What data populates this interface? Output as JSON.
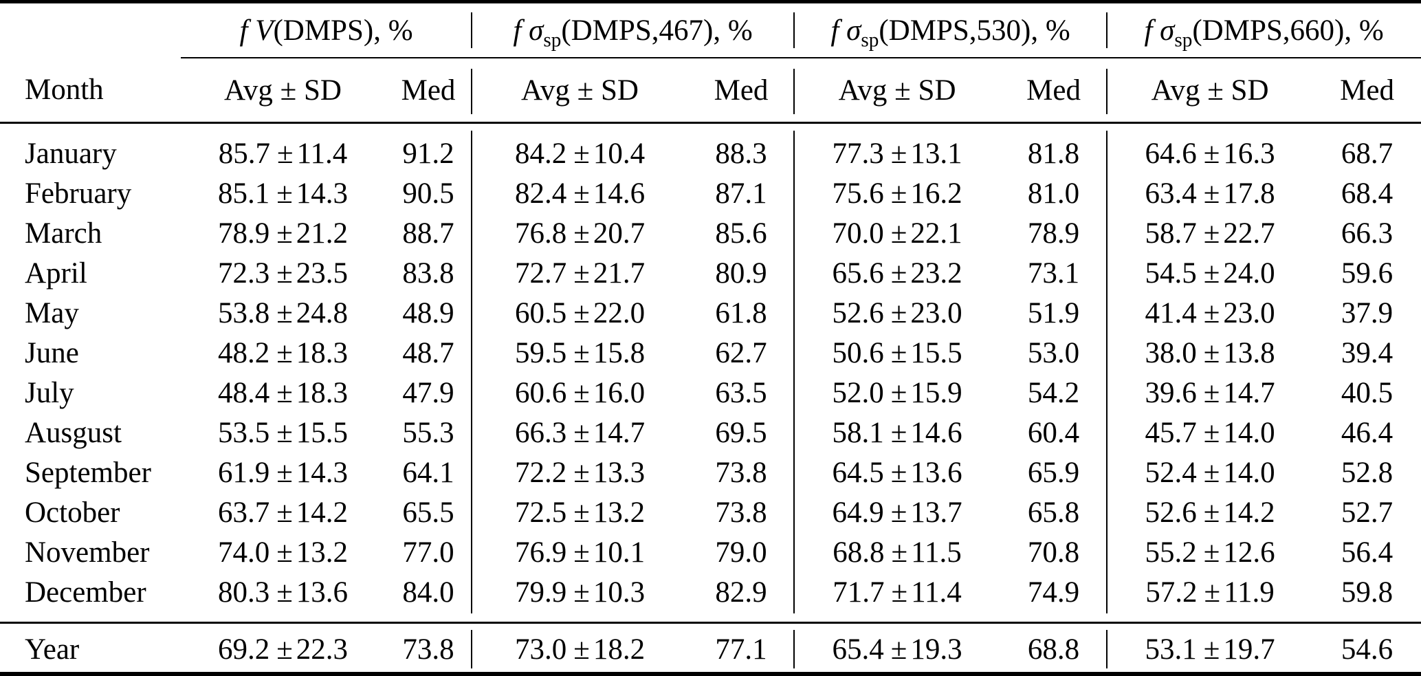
{
  "colors": {
    "text": "#000000",
    "background": "#ffffff",
    "rule": "#000000"
  },
  "table": {
    "row_header": "Month",
    "avg_sd_label": "Avg ± SD",
    "med_label": "Med",
    "plus_minus": "±",
    "col_groups": [
      {
        "label_italic": "f V",
        "label_sub": "",
        "label_rest": "(DMPS), %"
      },
      {
        "label_italic": "f σ",
        "label_sub": "sp",
        "label_rest": "(DMPS,467), %"
      },
      {
        "label_italic": "f σ",
        "label_sub": "sp",
        "label_rest": "(DMPS,530), %"
      },
      {
        "label_italic": "f σ",
        "label_sub": "sp",
        "label_rest": "(DMPS,660), %"
      }
    ],
    "rows": [
      {
        "month": "January",
        "g": [
          [
            "85.7",
            "11.4",
            "91.2"
          ],
          [
            "84.2",
            "10.4",
            "88.3"
          ],
          [
            "77.3",
            "13.1",
            "81.8"
          ],
          [
            "64.6",
            "16.3",
            "68.7"
          ]
        ]
      },
      {
        "month": "February",
        "g": [
          [
            "85.1",
            "14.3",
            "90.5"
          ],
          [
            "82.4",
            "14.6",
            "87.1"
          ],
          [
            "75.6",
            "16.2",
            "81.0"
          ],
          [
            "63.4",
            "17.8",
            "68.4"
          ]
        ]
      },
      {
        "month": "March",
        "g": [
          [
            "78.9",
            "21.2",
            "88.7"
          ],
          [
            "76.8",
            "20.7",
            "85.6"
          ],
          [
            "70.0",
            "22.1",
            "78.9"
          ],
          [
            "58.7",
            "22.7",
            "66.3"
          ]
        ]
      },
      {
        "month": "April",
        "g": [
          [
            "72.3",
            "23.5",
            "83.8"
          ],
          [
            "72.7",
            "21.7",
            "80.9"
          ],
          [
            "65.6",
            "23.2",
            "73.1"
          ],
          [
            "54.5",
            "24.0",
            "59.6"
          ]
        ]
      },
      {
        "month": "May",
        "g": [
          [
            "53.8",
            "24.8",
            "48.9"
          ],
          [
            "60.5",
            "22.0",
            "61.8"
          ],
          [
            "52.6",
            "23.0",
            "51.9"
          ],
          [
            "41.4",
            "23.0",
            "37.9"
          ]
        ]
      },
      {
        "month": "June",
        "g": [
          [
            "48.2",
            "18.3",
            "48.7"
          ],
          [
            "59.5",
            "15.8",
            "62.7"
          ],
          [
            "50.6",
            "15.5",
            "53.0"
          ],
          [
            "38.0",
            "13.8",
            "39.4"
          ]
        ]
      },
      {
        "month": "July",
        "g": [
          [
            "48.4",
            "18.3",
            "47.9"
          ],
          [
            "60.6",
            "16.0",
            "63.5"
          ],
          [
            "52.0",
            "15.9",
            "54.2"
          ],
          [
            "39.6",
            "14.7",
            "40.5"
          ]
        ]
      },
      {
        "month": "Ausgust",
        "g": [
          [
            "53.5",
            "15.5",
            "55.3"
          ],
          [
            "66.3",
            "14.7",
            "69.5"
          ],
          [
            "58.1",
            "14.6",
            "60.4"
          ],
          [
            "45.7",
            "14.0",
            "46.4"
          ]
        ]
      },
      {
        "month": "September",
        "g": [
          [
            "61.9",
            "14.3",
            "64.1"
          ],
          [
            "72.2",
            "13.3",
            "73.8"
          ],
          [
            "64.5",
            "13.6",
            "65.9"
          ],
          [
            "52.4",
            "14.0",
            "52.8"
          ]
        ]
      },
      {
        "month": "October",
        "g": [
          [
            "63.7",
            "14.2",
            "65.5"
          ],
          [
            "72.5",
            "13.2",
            "73.8"
          ],
          [
            "64.9",
            "13.7",
            "65.8"
          ],
          [
            "52.6",
            "14.2",
            "52.7"
          ]
        ]
      },
      {
        "month": "November",
        "g": [
          [
            "74.0",
            "13.2",
            "77.0"
          ],
          [
            "76.9",
            "10.1",
            "79.0"
          ],
          [
            "68.8",
            "11.5",
            "70.8"
          ],
          [
            "55.2",
            "12.6",
            "56.4"
          ]
        ]
      },
      {
        "month": "December",
        "g": [
          [
            "80.3",
            "13.6",
            "84.0"
          ],
          [
            "79.9",
            "10.3",
            "82.9"
          ],
          [
            "71.7",
            "11.4",
            "74.9"
          ],
          [
            "57.2",
            "11.9",
            "59.8"
          ]
        ]
      }
    ],
    "summary_row": {
      "month": "Year",
      "g": [
        [
          "69.2",
          "22.3",
          "73.8"
        ],
        [
          "73.0",
          "18.2",
          "77.1"
        ],
        [
          "65.4",
          "19.3",
          "68.8"
        ],
        [
          "53.1",
          "19.7",
          "54.6"
        ]
      ]
    }
  }
}
